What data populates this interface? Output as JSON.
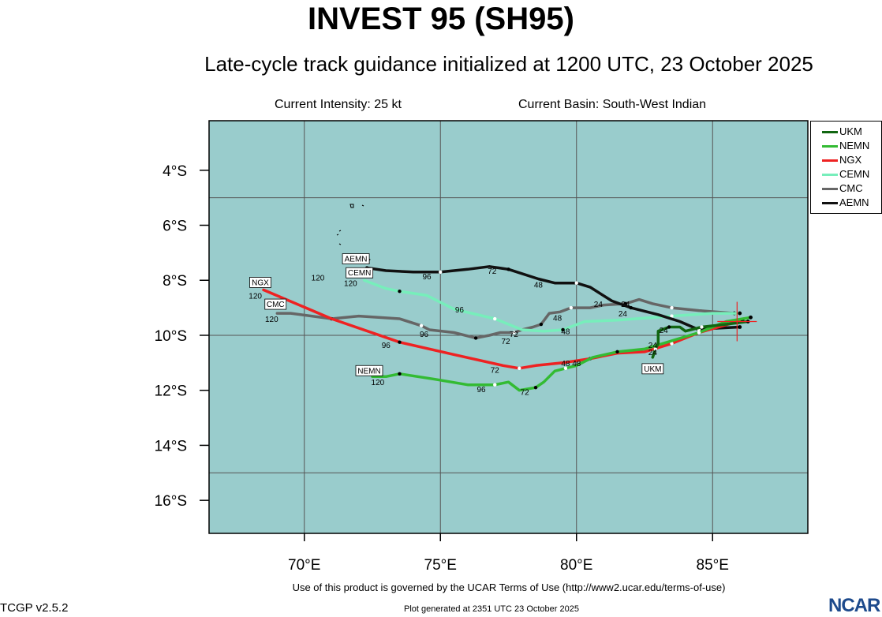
{
  "header": {
    "title": "INVEST 95 (SH95)",
    "subtitle": "Late-cycle track guidance initialized at 1200 UTC, 23 October 2025",
    "intensity": "Current Intensity: 25 kt",
    "basin": "Current Basin: South-West Indian"
  },
  "footer": {
    "terms": "Use of this product is governed by the UCAR Terms of Use (http://www2.ucar.edu/terms-of-use)",
    "version": "TCGP v2.5.2",
    "generated": "Plot generated at 2351 UTC   23 October 2025",
    "logo": "NCAR"
  },
  "colors": {
    "ocean": "#99cccc",
    "grid": "#555555"
  },
  "chart_data": {
    "type": "line",
    "x_axis": {
      "range": [
        66.5,
        88.5
      ],
      "ticks": [
        70,
        75,
        80,
        85
      ],
      "tick_labels": [
        "70°E",
        "75°E",
        "80°E",
        "85°E"
      ]
    },
    "y_axis": {
      "range": [
        -17.2,
        -2.2
      ],
      "ticks": [
        -4,
        -6,
        -8,
        -10,
        -12,
        -14,
        -16
      ],
      "tick_labels": [
        "4°S",
        "6°S",
        "8°S",
        "10°S",
        "12°S",
        "14°S",
        "16°S"
      ]
    },
    "grid": true,
    "legend_position": "right",
    "current_position": [
      85.9,
      -9.5
    ],
    "series": [
      {
        "name": "UKM",
        "color": "#116611",
        "end_label": "UKM",
        "points": [
          [
            86.3,
            -9.5
          ],
          [
            85.5,
            -9.6
          ],
          [
            84.6,
            -9.7
          ],
          [
            84.0,
            -9.85
          ],
          [
            83.8,
            -9.7
          ],
          [
            83.4,
            -9.7
          ],
          [
            83.0,
            -9.85
          ],
          [
            83.0,
            -10.3
          ],
          [
            82.9,
            -10.5
          ],
          [
            82.8,
            -10.8
          ]
        ]
      },
      {
        "name": "NEMN",
        "color": "#33bb33",
        "end_label": "NEMN",
        "points": [
          [
            86.4,
            -9.35
          ],
          [
            85.5,
            -9.5
          ],
          [
            84.5,
            -9.9
          ],
          [
            83.5,
            -10.2
          ],
          [
            82.5,
            -10.5
          ],
          [
            81.5,
            -10.6
          ],
          [
            80.6,
            -10.8
          ],
          [
            80.0,
            -11.1
          ],
          [
            79.6,
            -11.2
          ],
          [
            79.2,
            -11.3
          ],
          [
            78.8,
            -11.7
          ],
          [
            78.5,
            -11.9
          ],
          [
            77.9,
            -12.0
          ],
          [
            77.5,
            -11.7
          ],
          [
            77.0,
            -11.8
          ],
          [
            76.0,
            -11.8
          ],
          [
            74.8,
            -11.6
          ],
          [
            73.5,
            -11.4
          ],
          [
            73.0,
            -11.5
          ],
          [
            72.5,
            -11.5
          ]
        ]
      },
      {
        "name": "NGX",
        "color": "#ee2222",
        "end_label": "NGX",
        "points": [
          [
            86.1,
            -9.45
          ],
          [
            84.5,
            -9.9
          ],
          [
            83.5,
            -10.3
          ],
          [
            82.5,
            -10.6
          ],
          [
            81.5,
            -10.65
          ],
          [
            80.5,
            -10.85
          ],
          [
            79.5,
            -11.0
          ],
          [
            78.5,
            -11.1
          ],
          [
            77.9,
            -11.2
          ],
          [
            77.3,
            -11.1
          ],
          [
            75.5,
            -10.7
          ],
          [
            73.5,
            -10.25
          ],
          [
            71.0,
            -9.4
          ],
          [
            68.5,
            -8.35
          ]
        ]
      },
      {
        "name": "CEMN",
        "color": "#77eebb",
        "end_label": "CEMN",
        "points": [
          [
            86.0,
            -9.2
          ],
          [
            85.0,
            -9.2
          ],
          [
            83.5,
            -9.3
          ],
          [
            81.5,
            -9.45
          ],
          [
            80.3,
            -9.5
          ],
          [
            79.5,
            -9.8
          ],
          [
            78.8,
            -9.85
          ],
          [
            78.0,
            -9.8
          ],
          [
            77.0,
            -9.4
          ],
          [
            75.5,
            -9.05
          ],
          [
            74.5,
            -8.55
          ],
          [
            73.5,
            -8.4
          ],
          [
            73.0,
            -8.3
          ],
          [
            72.2,
            -8.0
          ]
        ]
      },
      {
        "name": "CMC",
        "color": "#666666",
        "end_label": "CMC",
        "points": [
          [
            85.8,
            -9.2
          ],
          [
            84.5,
            -9.1
          ],
          [
            83.5,
            -9.0
          ],
          [
            82.8,
            -8.85
          ],
          [
            82.3,
            -8.7
          ],
          [
            81.8,
            -8.85
          ],
          [
            81.0,
            -8.9
          ],
          [
            80.5,
            -9.0
          ],
          [
            79.8,
            -9.0
          ],
          [
            79.4,
            -9.15
          ],
          [
            79.0,
            -9.2
          ],
          [
            78.7,
            -9.6
          ],
          [
            78.4,
            -9.7
          ],
          [
            78.0,
            -9.8
          ],
          [
            77.7,
            -9.9
          ],
          [
            77.2,
            -9.9
          ],
          [
            76.8,
            -10.0
          ],
          [
            76.3,
            -10.1
          ],
          [
            75.5,
            -9.9
          ],
          [
            74.6,
            -9.8
          ],
          [
            74.3,
            -9.65
          ],
          [
            73.5,
            -9.4
          ],
          [
            72.0,
            -9.3
          ],
          [
            71.0,
            -9.4
          ],
          [
            69.5,
            -9.2
          ],
          [
            69.0,
            -9.2
          ]
        ]
      },
      {
        "name": "AEMN",
        "color": "#111111",
        "end_label": "AEMN",
        "points": [
          [
            86.0,
            -9.7
          ],
          [
            85.0,
            -9.75
          ],
          [
            84.5,
            -9.8
          ],
          [
            83.8,
            -9.5
          ],
          [
            83.0,
            -9.25
          ],
          [
            82.0,
            -9.0
          ],
          [
            81.3,
            -8.75
          ],
          [
            80.5,
            -8.25
          ],
          [
            80.0,
            -8.1
          ],
          [
            79.2,
            -8.1
          ],
          [
            78.6,
            -7.95
          ],
          [
            77.5,
            -7.6
          ],
          [
            76.8,
            -7.5
          ],
          [
            76.0,
            -7.6
          ],
          [
            75.0,
            -7.7
          ],
          [
            74.0,
            -7.7
          ],
          [
            73.0,
            -7.65
          ],
          [
            72.3,
            -7.55
          ]
        ]
      }
    ],
    "annotations": [
      {
        "text": "120",
        "x": 70.5,
        "y": -7.9
      },
      {
        "text": "120",
        "x": 71.7,
        "y": -8.1
      },
      {
        "text": "120",
        "x": 68.2,
        "y": -8.55
      },
      {
        "text": "120",
        "x": 68.8,
        "y": -9.4
      },
      {
        "text": "120",
        "x": 72.7,
        "y": -11.7
      },
      {
        "text": "96",
        "x": 74.5,
        "y": -7.85
      },
      {
        "text": "72",
        "x": 76.9,
        "y": -7.65
      },
      {
        "text": "48",
        "x": 78.6,
        "y": -8.15
      },
      {
        "text": "96",
        "x": 75.7,
        "y": -9.05
      },
      {
        "text": "24",
        "x": 80.8,
        "y": -8.85
      },
      {
        "text": "24",
        "x": 81.8,
        "y": -8.85
      },
      {
        "text": "24",
        "x": 81.7,
        "y": -9.2
      },
      {
        "text": "48",
        "x": 79.3,
        "y": -9.35
      },
      {
        "text": "96",
        "x": 74.4,
        "y": -9.95
      },
      {
        "text": "72",
        "x": 77.7,
        "y": -9.95
      },
      {
        "text": "72",
        "x": 77.4,
        "y": -10.2
      },
      {
        "text": "48",
        "x": 79.6,
        "y": -9.85
      },
      {
        "text": "24",
        "x": 83.2,
        "y": -9.8
      },
      {
        "text": "24",
        "x": 82.8,
        "y": -10.35
      },
      {
        "text": "24",
        "x": 82.8,
        "y": -10.6
      },
      {
        "text": "96",
        "x": 73.0,
        "y": -10.35
      },
      {
        "text": "48",
        "x": 79.6,
        "y": -11.0
      },
      {
        "text": "48",
        "x": 80.0,
        "y": -11.0
      },
      {
        "text": "72",
        "x": 77.0,
        "y": -11.25
      },
      {
        "text": "96",
        "x": 76.5,
        "y": -11.95
      },
      {
        "text": "72",
        "x": 78.1,
        "y": -12.05
      }
    ]
  }
}
